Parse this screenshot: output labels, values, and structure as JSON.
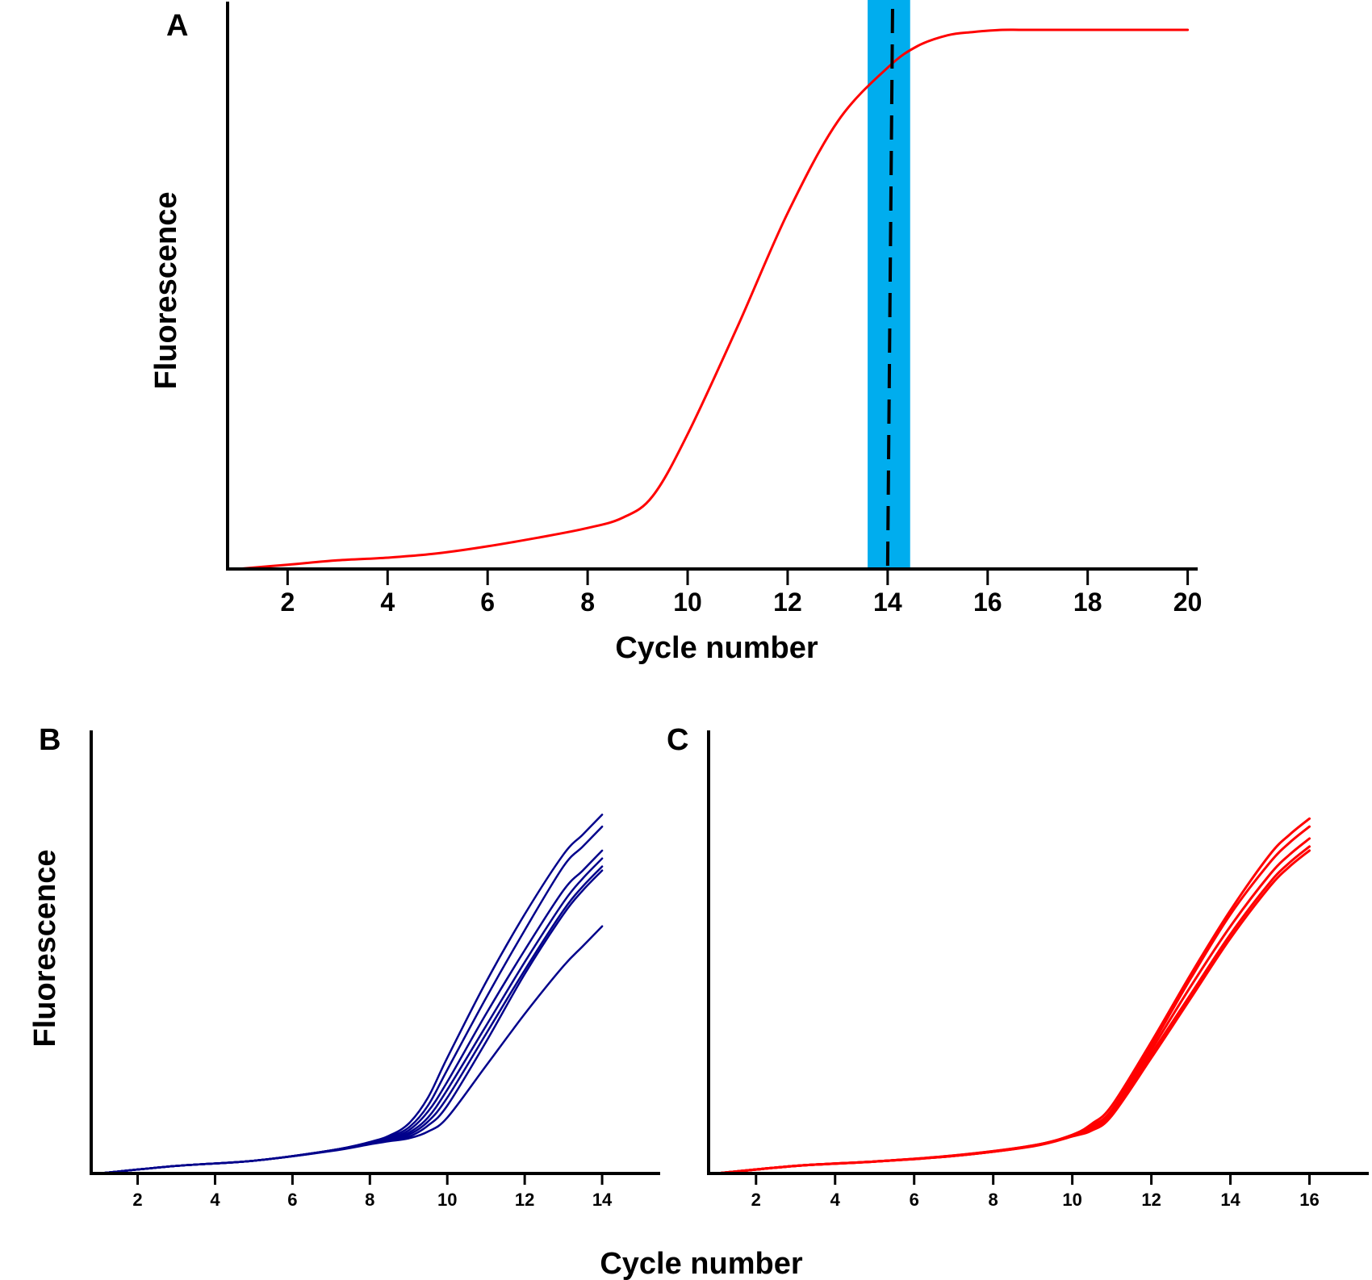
{
  "figure": {
    "shared_xlabel": "Cycle number"
  },
  "chart_data": [
    {
      "panel": "A",
      "type": "line",
      "xlabel": "Cycle number",
      "ylabel": "Fluorescence",
      "xlim": [
        0.8,
        20.2
      ],
      "ylim": [
        0,
        100
      ],
      "xticks": [
        2,
        4,
        6,
        8,
        10,
        12,
        14,
        16,
        18,
        20
      ],
      "grid": false,
      "y_tick_labels": false,
      "colors": {
        "curve": "#ff0000",
        "band": "#00adee",
        "threshold": "#000000"
      },
      "highlight_band": {
        "x_from": 13.6,
        "x_to": 14.45,
        "color": "#00adee"
      },
      "threshold_line": {
        "x_bottom": 14.0,
        "x_top": 14.1,
        "style": "dashed"
      },
      "series": [
        {
          "color": "#ff0000",
          "x": [
            1,
            2,
            3,
            4,
            5,
            6,
            7,
            8,
            8.7,
            9.3,
            10,
            11,
            12,
            13,
            14,
            14.6,
            15.2,
            15.7,
            16.3,
            17,
            20
          ],
          "y": [
            0,
            0.8,
            1.6,
            2.1,
            2.9,
            4.2,
            5.8,
            7.6,
            9.5,
            13.5,
            25,
            45,
            66,
            83,
            93,
            97,
            99,
            99.6,
            100,
            100,
            100
          ]
        }
      ]
    },
    {
      "panel": "B",
      "type": "line",
      "xlabel": "",
      "ylabel": "Fluorescence",
      "xlim": [
        0.8,
        15.5
      ],
      "ylim": [
        0,
        100
      ],
      "xticks": [
        2,
        4,
        6,
        8,
        10,
        12,
        14
      ],
      "grid": false,
      "y_tick_labels": false,
      "color": "#00008b",
      "series": [
        {
          "x": [
            1,
            3,
            5,
            7,
            8,
            8.5,
            9,
            9.5,
            10,
            11,
            12,
            13,
            13.5,
            14
          ],
          "y": [
            0,
            1.9,
            3.2,
            5.8,
            7.9,
            9.5,
            12.5,
            19,
            29,
            48,
            65,
            80,
            85,
            90
          ]
        },
        {
          "x": [
            1,
            3,
            5,
            7,
            8,
            8.5,
            9,
            9.5,
            10,
            11,
            12,
            13,
            13.5,
            14
          ],
          "y": [
            0,
            1.9,
            3.2,
            5.8,
            7.8,
            9.2,
            11.5,
            17,
            26,
            44,
            61,
            77,
            82,
            87
          ]
        },
        {
          "x": [
            1,
            3,
            5,
            7,
            8,
            8.5,
            9,
            9.5,
            10,
            11,
            12,
            13,
            13.5,
            14
          ],
          "y": [
            0,
            1.9,
            3.2,
            5.8,
            7.7,
            8.9,
            10.8,
            15.5,
            23,
            40,
            56,
            71,
            76,
            81
          ]
        },
        {
          "x": [
            1,
            3,
            5,
            7,
            8,
            8.5,
            9,
            9.5,
            10,
            11,
            12,
            13,
            13.5,
            14
          ],
          "y": [
            0,
            1.9,
            3.2,
            5.7,
            7.6,
            8.7,
            10.2,
            14,
            21,
            37,
            53,
            68,
            74,
            79
          ]
        },
        {
          "x": [
            1,
            3,
            5,
            7,
            8,
            8.5,
            9,
            9.5,
            10,
            11,
            12,
            13,
            13.5,
            14
          ],
          "y": [
            0,
            1.9,
            3.2,
            5.7,
            7.5,
            8.5,
            9.7,
            13,
            19,
            35,
            51,
            66,
            72,
            77
          ]
        },
        {
          "x": [
            1,
            3,
            5,
            7,
            8,
            8.5,
            9,
            9.5,
            10,
            11,
            12,
            13,
            13.5,
            14
          ],
          "y": [
            0,
            1.9,
            3.2,
            5.7,
            7.4,
            8.3,
            9.2,
            12,
            17,
            33,
            50,
            65,
            71,
            76
          ]
        },
        {
          "x": [
            1,
            3,
            5,
            7,
            8,
            8.5,
            9,
            9.5,
            10,
            11,
            12,
            13,
            13.5,
            14
          ],
          "y": [
            0,
            1.9,
            3.2,
            5.6,
            7.3,
            8.1,
            8.8,
            10.5,
            14,
            27,
            40,
            52,
            57,
            62
          ]
        }
      ]
    },
    {
      "panel": "C",
      "type": "line",
      "xlabel": "",
      "ylabel": "",
      "xlim": [
        0.8,
        17.5
      ],
      "ylim": [
        0,
        100
      ],
      "xticks": [
        2,
        4,
        6,
        8,
        10,
        12,
        14,
        16
      ],
      "grid": false,
      "y_tick_labels": false,
      "color": "#ff0000",
      "series": [
        {
          "x": [
            1,
            3,
            5,
            7,
            9,
            10,
            10.5,
            11,
            12,
            13,
            14,
            15,
            15.5,
            16
          ],
          "y": [
            0,
            1.9,
            3,
            4.5,
            7,
            9.7,
            12.5,
            17,
            33,
            50,
            66,
            80,
            85,
            89
          ]
        },
        {
          "x": [
            1,
            3,
            5,
            7,
            9,
            10,
            10.5,
            11,
            12,
            13,
            14,
            15,
            15.5,
            16
          ],
          "y": [
            0,
            1.9,
            3,
            4.5,
            7,
            9.6,
            12,
            16,
            32,
            49,
            65,
            78,
            83,
            87
          ]
        },
        {
          "x": [
            1,
            3,
            5,
            7,
            9,
            10,
            10.5,
            11,
            12,
            13,
            14,
            15,
            15.5,
            16
          ],
          "y": [
            0,
            1.9,
            3,
            4.4,
            6.9,
            9.5,
            11.5,
            15.5,
            31,
            47,
            62,
            75,
            80,
            84
          ]
        },
        {
          "x": [
            1,
            3,
            5,
            7,
            9,
            10,
            10.5,
            11,
            12,
            13,
            14,
            15,
            15.5,
            16
          ],
          "y": [
            0,
            1.9,
            3,
            4.4,
            6.9,
            9.4,
            11,
            15,
            30,
            45,
            60,
            73,
            78,
            82
          ]
        },
        {
          "x": [
            1,
            3,
            5,
            7,
            9,
            10,
            10.5,
            11,
            12,
            13,
            14,
            15,
            15.5,
            16
          ],
          "y": [
            0,
            1.9,
            3,
            4.4,
            6.8,
            9.3,
            10.8,
            14.5,
            29,
            44,
            59,
            72,
            77,
            81
          ]
        }
      ]
    }
  ]
}
